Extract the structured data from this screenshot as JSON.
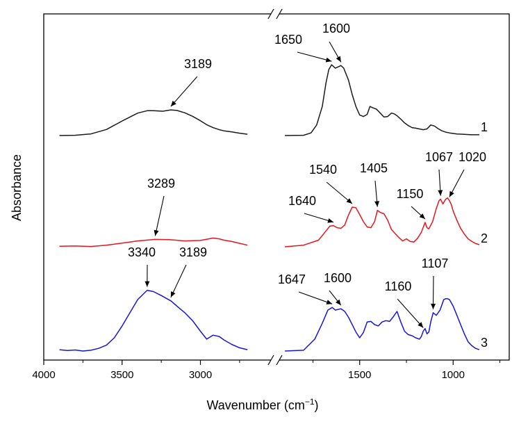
{
  "chart_data": {
    "type": "line",
    "xlabel": "Wavenumber (cm",
    "xlabel_sup": "−1",
    "xlabel_close": ")",
    "ylabel": "Absorbance",
    "x_reversed": true,
    "axis_break": true,
    "x_ticks": [
      {
        "value": 4000,
        "label": "4000"
      },
      {
        "value": 3500,
        "label": "3500"
      },
      {
        "value": 3000,
        "label": "3000"
      },
      {
        "value": 1500,
        "label": "1500"
      },
      {
        "value": 1000,
        "label": "1000"
      }
    ],
    "x_segments": [
      {
        "from": 4000,
        "to": 2550
      },
      {
        "from": 1930,
        "to": 700
      }
    ],
    "grid": false,
    "series": [
      {
        "name": "1",
        "color": "#1a1a1a",
        "x": [
          3900,
          3800,
          3700,
          3600,
          3500,
          3400,
          3340,
          3300,
          3240,
          3189,
          3150,
          3100,
          3050,
          3000,
          2960,
          2920,
          2880,
          2850,
          2800,
          2750,
          2700,
          1900,
          1800,
          1760,
          1730,
          1700,
          1680,
          1665,
          1650,
          1630,
          1615,
          1600,
          1585,
          1560,
          1540,
          1520,
          1500,
          1480,
          1460,
          1445,
          1430,
          1410,
          1390,
          1370,
          1350,
          1330,
          1315,
          1300,
          1280,
          1260,
          1240,
          1220,
          1200,
          1180,
          1160,
          1140,
          1120,
          1100,
          1080,
          1060,
          1040,
          1020,
          1000,
          980,
          950,
          900,
          860
        ],
        "y": [
          0.0,
          0.01,
          0.06,
          0.23,
          0.55,
          0.85,
          0.94,
          0.94,
          0.92,
          0.97,
          0.95,
          0.86,
          0.73,
          0.56,
          0.41,
          0.3,
          0.22,
          0.18,
          0.14,
          0.09,
          0.05,
          0.0,
          0.01,
          0.1,
          0.4,
          1.1,
          2.0,
          2.5,
          2.68,
          2.55,
          2.6,
          2.65,
          2.55,
          2.1,
          1.55,
          1.1,
          0.78,
          0.72,
          0.8,
          1.1,
          1.05,
          1.0,
          0.85,
          0.7,
          0.72,
          0.85,
          0.82,
          0.75,
          0.62,
          0.48,
          0.38,
          0.3,
          0.28,
          0.25,
          0.22,
          0.25,
          0.4,
          0.36,
          0.26,
          0.18,
          0.13,
          0.1,
          0.08,
          0.06,
          0.05,
          0.03,
          0.03
        ]
      },
      {
        "name": "2",
        "color": "#e8141c",
        "x": [
          3900,
          3800,
          3700,
          3600,
          3500,
          3400,
          3289,
          3200,
          3100,
          3000,
          2920,
          2880,
          2850,
          2800,
          2750,
          2700,
          1900,
          1800,
          1720,
          1680,
          1660,
          1640,
          1620,
          1600,
          1580,
          1560,
          1540,
          1520,
          1500,
          1480,
          1460,
          1440,
          1420,
          1405,
          1390,
          1370,
          1350,
          1330,
          1310,
          1290,
          1270,
          1250,
          1230,
          1210,
          1190,
          1170,
          1150,
          1140,
          1130,
          1110,
          1090,
          1075,
          1067,
          1055,
          1040,
          1030,
          1020,
          1010,
          1000,
          980,
          960,
          940,
          920,
          900,
          880,
          860
        ],
        "y": [
          0.02,
          0.03,
          0.01,
          0.06,
          0.14,
          0.22,
          0.28,
          0.27,
          0.22,
          0.24,
          0.33,
          0.3,
          0.25,
          0.2,
          0.13,
          0.06,
          0.0,
          0.06,
          0.25,
          0.6,
          0.78,
          0.8,
          0.72,
          0.7,
          0.82,
          1.2,
          1.5,
          1.48,
          1.22,
          0.95,
          0.75,
          0.72,
          0.95,
          1.38,
          1.3,
          1.25,
          1.0,
          0.65,
          0.5,
          0.35,
          0.22,
          0.3,
          0.2,
          0.18,
          0.32,
          0.55,
          0.92,
          0.72,
          0.68,
          0.95,
          1.45,
          1.75,
          1.8,
          1.62,
          1.8,
          1.85,
          1.75,
          1.6,
          1.35,
          1.0,
          0.7,
          0.48,
          0.3,
          0.2,
          0.12,
          0.08
        ]
      },
      {
        "name": "3",
        "color": "#1414e0",
        "x": [
          3900,
          3850,
          3800,
          3750,
          3700,
          3650,
          3600,
          3550,
          3500,
          3450,
          3400,
          3340,
          3300,
          3250,
          3189,
          3150,
          3100,
          3050,
          3000,
          2960,
          2920,
          2880,
          2850,
          2800,
          2750,
          2700,
          1900,
          1800,
          1740,
          1700,
          1670,
          1647,
          1630,
          1600,
          1580,
          1560,
          1540,
          1520,
          1500,
          1480,
          1460,
          1440,
          1420,
          1400,
          1380,
          1360,
          1340,
          1320,
          1300,
          1280,
          1260,
          1240,
          1220,
          1200,
          1180,
          1170,
          1160,
          1150,
          1140,
          1130,
          1120,
          1107,
          1090,
          1070,
          1050,
          1040,
          1030,
          1020,
          1000,
          980,
          960,
          940,
          920,
          900,
          880,
          860
        ],
        "y": [
          0.05,
          0.02,
          0.04,
          0.0,
          0.03,
          0.1,
          0.22,
          0.5,
          0.95,
          1.45,
          1.95,
          2.3,
          2.25,
          2.1,
          1.9,
          1.7,
          1.45,
          1.15,
          0.75,
          0.45,
          0.6,
          0.55,
          0.42,
          0.25,
          0.12,
          0.05,
          0.0,
          0.03,
          0.45,
          1.05,
          1.55,
          1.65,
          1.55,
          1.6,
          1.5,
          1.28,
          1.0,
          0.72,
          0.5,
          0.7,
          1.1,
          1.12,
          1.0,
          0.95,
          1.1,
          1.15,
          1.12,
          1.3,
          1.5,
          1.1,
          0.75,
          0.62,
          0.58,
          0.5,
          0.45,
          0.55,
          0.75,
          0.85,
          0.65,
          0.72,
          1.1,
          1.45,
          1.35,
          1.55,
          1.95,
          1.98,
          1.98,
          1.95,
          1.7,
          1.35,
          1.0,
          0.65,
          0.35,
          0.2,
          0.1,
          0.05
        ]
      }
    ],
    "annotations": [
      {
        "label": "3189",
        "series": "1",
        "x": 3189
      },
      {
        "label": "1650",
        "series": "1",
        "x": 1650
      },
      {
        "label": "1600",
        "series": "1",
        "x": 1600
      },
      {
        "label": "3289",
        "series": "2",
        "x": 3289
      },
      {
        "label": "1640",
        "series": "2",
        "x": 1640
      },
      {
        "label": "1540",
        "series": "2",
        "x": 1540
      },
      {
        "label": "1405",
        "series": "2",
        "x": 1405
      },
      {
        "label": "1150",
        "series": "2",
        "x": 1150
      },
      {
        "label": "1067",
        "series": "2",
        "x": 1067
      },
      {
        "label": "1020",
        "series": "2",
        "x": 1020
      },
      {
        "label": "3340",
        "series": "3",
        "x": 3340
      },
      {
        "label": "3189",
        "series": "3",
        "x": 3189
      },
      {
        "label": "1647",
        "series": "3",
        "x": 1647
      },
      {
        "label": "1600",
        "series": "3",
        "x": 1600
      },
      {
        "label": "1160",
        "series": "3",
        "x": 1160
      },
      {
        "label": "1107",
        "series": "3",
        "x": 1107
      }
    ]
  }
}
